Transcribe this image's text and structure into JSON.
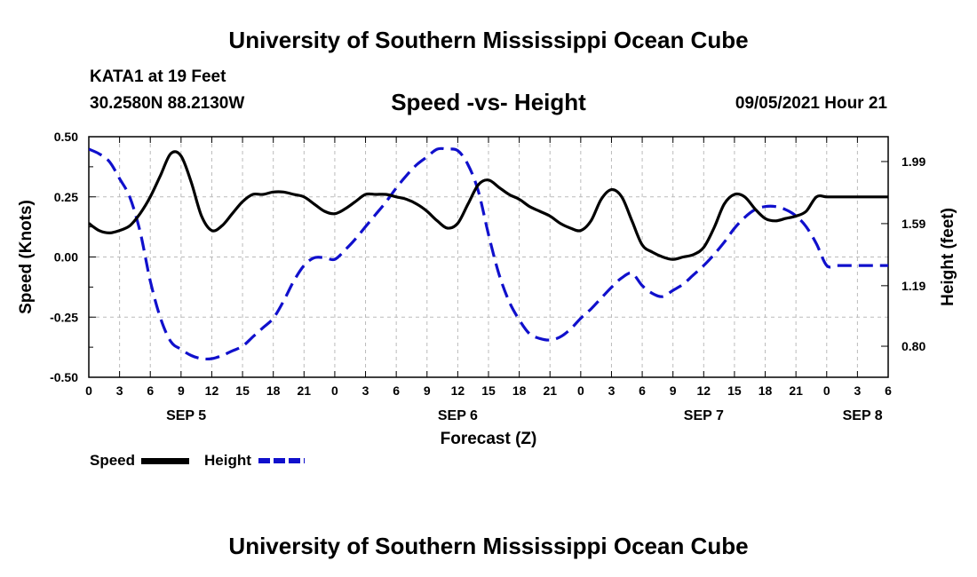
{
  "header": {
    "title_top": "University of Southern Mississippi Ocean Cube",
    "station": "KATA1 at 19 Feet",
    "coords": "30.2580N  88.2130W",
    "chart_title": "Speed -vs- Height",
    "timestamp": "09/05/2021 Hour 21",
    "title_bottom": "University of Southern Mississippi Ocean Cube"
  },
  "legend": {
    "speed_label": "Speed",
    "height_label": "Height"
  },
  "colors": {
    "speed": "#000000",
    "height": "#1010cc",
    "grid": "#bbbbbb"
  },
  "chart_data": {
    "type": "line",
    "title": "Speed -vs- Height",
    "xlabel": "Forecast (Z)",
    "ylabel": "Speed (Knots)",
    "y2label": "Height (feet)",
    "ylim": [
      -0.5,
      0.5
    ],
    "y2lim": [
      0.6,
      2.15
    ],
    "xlim_hours": [
      0,
      78
    ],
    "x_tick_labels": [
      "0",
      "3",
      "6",
      "9",
      "12",
      "15",
      "18",
      "21",
      "0",
      "3",
      "6",
      "9",
      "12",
      "15",
      "18",
      "21",
      "0",
      "3",
      "6",
      "9",
      "12",
      "15",
      "18",
      "21",
      "0",
      "3",
      "6"
    ],
    "date_labels": [
      {
        "label": "SEP 5",
        "hour": 9.5
      },
      {
        "label": "SEP 6",
        "hour": 36
      },
      {
        "label": "SEP 7",
        "hour": 60
      },
      {
        "label": "SEP 8",
        "hour": 75.5
      }
    ],
    "y_ticks": [
      "0.50",
      "0.25",
      "0.00",
      "-0.25",
      "-0.50"
    ],
    "y2_ticks": [
      "1.99",
      "1.59",
      "1.19",
      "0.80"
    ],
    "grid": true,
    "legend_position": "bottom-left",
    "series": [
      {
        "name": "Speed",
        "axis": "left",
        "style": "solid",
        "x": [
          0,
          1,
          2,
          3,
          4,
          5,
          6,
          7,
          8,
          9,
          10,
          11,
          12,
          13,
          14,
          15,
          16,
          17,
          18,
          19,
          20,
          21,
          22,
          23,
          24,
          25,
          26,
          27,
          28,
          29,
          30,
          31,
          32,
          33,
          34,
          35,
          36,
          37,
          38,
          39,
          40,
          41,
          42,
          43,
          44,
          45,
          46,
          47,
          48,
          49,
          50,
          51,
          52,
          53,
          54,
          55,
          56,
          57,
          58,
          59,
          60,
          61,
          62,
          63,
          64,
          65,
          66,
          67,
          68,
          69,
          70,
          71,
          72,
          73,
          74,
          75,
          76,
          77,
          78
        ],
        "values": [
          0.14,
          0.11,
          0.1,
          0.11,
          0.13,
          0.18,
          0.25,
          0.34,
          0.43,
          0.42,
          0.31,
          0.17,
          0.11,
          0.13,
          0.18,
          0.23,
          0.26,
          0.26,
          0.27,
          0.27,
          0.26,
          0.25,
          0.22,
          0.19,
          0.18,
          0.2,
          0.23,
          0.26,
          0.26,
          0.26,
          0.25,
          0.24,
          0.22,
          0.19,
          0.15,
          0.12,
          0.14,
          0.22,
          0.3,
          0.32,
          0.29,
          0.26,
          0.24,
          0.21,
          0.19,
          0.17,
          0.14,
          0.12,
          0.11,
          0.15,
          0.24,
          0.28,
          0.25,
          0.15,
          0.05,
          0.02,
          0.0,
          -0.01,
          0.0,
          0.01,
          0.04,
          0.12,
          0.22,
          0.26,
          0.25,
          0.2,
          0.16,
          0.15,
          0.16,
          0.17,
          0.19,
          0.25,
          0.25,
          0.25,
          0.25,
          0.25,
          0.25,
          0.25,
          0.25
        ]
      },
      {
        "name": "Height",
        "axis": "right",
        "style": "dashed",
        "x": [
          0,
          1,
          2,
          3,
          4,
          5,
          6,
          7,
          8,
          9,
          10,
          11,
          12,
          13,
          14,
          15,
          16,
          17,
          18,
          19,
          20,
          21,
          22,
          23,
          24,
          25,
          26,
          27,
          28,
          29,
          30,
          31,
          32,
          33,
          34,
          35,
          36,
          37,
          38,
          39,
          40,
          41,
          42,
          43,
          44,
          45,
          46,
          47,
          48,
          49,
          50,
          51,
          52,
          53,
          54,
          55,
          56,
          57,
          58,
          59,
          60,
          61,
          62,
          63,
          64,
          65,
          66,
          67,
          68,
          69,
          70,
          71,
          72,
          73,
          74,
          75,
          76,
          77,
          78
        ],
        "values": [
          2.07,
          2.04,
          1.99,
          1.88,
          1.76,
          1.54,
          1.22,
          0.98,
          0.83,
          0.78,
          0.74,
          0.72,
          0.72,
          0.74,
          0.77,
          0.8,
          0.86,
          0.92,
          0.98,
          1.09,
          1.22,
          1.32,
          1.37,
          1.37,
          1.36,
          1.42,
          1.49,
          1.57,
          1.65,
          1.73,
          1.82,
          1.9,
          1.97,
          2.02,
          2.07,
          2.07,
          2.06,
          1.97,
          1.8,
          1.52,
          1.27,
          1.09,
          0.97,
          0.88,
          0.85,
          0.84,
          0.86,
          0.91,
          0.98,
          1.04,
          1.11,
          1.18,
          1.24,
          1.27,
          1.19,
          1.14,
          1.12,
          1.16,
          1.2,
          1.26,
          1.32,
          1.39,
          1.47,
          1.56,
          1.63,
          1.68,
          1.7,
          1.7,
          1.68,
          1.64,
          1.57,
          1.46,
          1.32,
          1.32,
          1.32,
          1.32,
          1.32,
          1.32,
          1.32
        ]
      }
    ]
  }
}
